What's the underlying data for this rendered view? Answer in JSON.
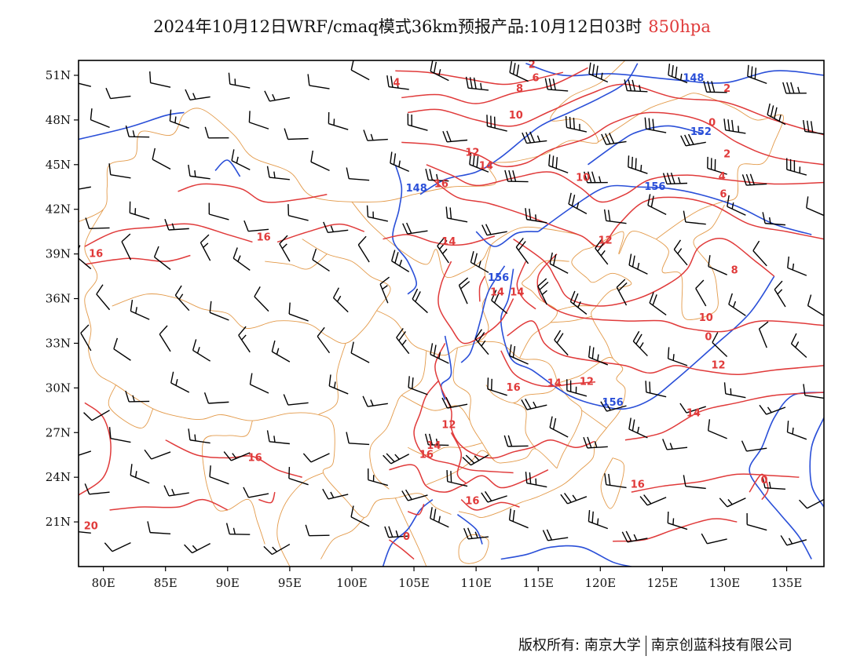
{
  "title": {
    "main": "2024年10月12日WRF/cmaq模式36km预报产品:10月12日03时",
    "level": "850hpa"
  },
  "axes": {
    "x_ticks": [
      "80E",
      "85E",
      "90E",
      "95E",
      "100E",
      "105E",
      "110E",
      "115E",
      "120E",
      "125E",
      "130E",
      "135E"
    ],
    "y_ticks": [
      "51N",
      "48N",
      "45N",
      "42N",
      "39N",
      "36N",
      "33N",
      "30N",
      "27N",
      "24N",
      "21N"
    ]
  },
  "map": {
    "lon_range": [
      78,
      138
    ],
    "lat_range": [
      18,
      52
    ],
    "colors": {
      "temperature_contour": "#e03a3a",
      "height_contour": "#2a4fd8",
      "boundary": "#e39a4a",
      "wind_barb": "#000000"
    },
    "contour_labels": [
      {
        "text": "2",
        "lon": 114.5,
        "lat": 51.5,
        "kind": "temp"
      },
      {
        "text": "4",
        "lon": 103.6,
        "lat": 50.3,
        "kind": "temp"
      },
      {
        "text": "6",
        "lon": 114.8,
        "lat": 50.6,
        "kind": "temp"
      },
      {
        "text": "8",
        "lon": 113.5,
        "lat": 49.9,
        "kind": "temp"
      },
      {
        "text": "148",
        "lon": 127.5,
        "lat": 50.6,
        "kind": "height"
      },
      {
        "text": "2",
        "lon": 130.2,
        "lat": 49.9,
        "kind": "temp"
      },
      {
        "text": "10",
        "lon": 113.2,
        "lat": 48.1,
        "kind": "temp"
      },
      {
        "text": "0",
        "lon": 129,
        "lat": 47.6,
        "kind": "temp"
      },
      {
        "text": "152",
        "lon": 128.1,
        "lat": 47.0,
        "kind": "height"
      },
      {
        "text": "12",
        "lon": 109.7,
        "lat": 45.6,
        "kind": "temp"
      },
      {
        "text": "2",
        "lon": 130.2,
        "lat": 45.5,
        "kind": "temp"
      },
      {
        "text": "14",
        "lon": 110.8,
        "lat": 44.7,
        "kind": "temp"
      },
      {
        "text": "10",
        "lon": 118.6,
        "lat": 43.9,
        "kind": "temp"
      },
      {
        "text": "156",
        "lon": 124.4,
        "lat": 43.3,
        "kind": "height"
      },
      {
        "text": "16",
        "lon": 107.2,
        "lat": 43.5,
        "kind": "temp"
      },
      {
        "text": "148",
        "lon": 105.2,
        "lat": 43.2,
        "kind": "height"
      },
      {
        "text": "4",
        "lon": 129.8,
        "lat": 44.0,
        "kind": "temp"
      },
      {
        "text": "6",
        "lon": 129.9,
        "lat": 42.8,
        "kind": "temp"
      },
      {
        "text": "16",
        "lon": 92.9,
        "lat": 39.9,
        "kind": "temp"
      },
      {
        "text": "14",
        "lon": 107.8,
        "lat": 39.6,
        "kind": "temp"
      },
      {
        "text": "12",
        "lon": 120.4,
        "lat": 39.7,
        "kind": "temp"
      },
      {
        "text": "16",
        "lon": 79.4,
        "lat": 38.8,
        "kind": "temp"
      },
      {
        "text": "156",
        "lon": 111.8,
        "lat": 37.2,
        "kind": "height"
      },
      {
        "text": "8",
        "lon": 130.8,
        "lat": 37.7,
        "kind": "temp"
      },
      {
        "text": "14",
        "lon": 111.7,
        "lat": 36.2,
        "kind": "temp"
      },
      {
        "text": "14",
        "lon": 113.3,
        "lat": 36.2,
        "kind": "temp"
      },
      {
        "text": "10",
        "lon": 128.5,
        "lat": 34.5,
        "kind": "temp"
      },
      {
        "text": "0",
        "lon": 128.7,
        "lat": 33.2,
        "kind": "temp"
      },
      {
        "text": "12",
        "lon": 129.5,
        "lat": 31.3,
        "kind": "temp"
      },
      {
        "text": "16",
        "lon": 113.0,
        "lat": 29.8,
        "kind": "temp"
      },
      {
        "text": "14",
        "lon": 116.3,
        "lat": 30.1,
        "kind": "temp"
      },
      {
        "text": "12",
        "lon": 118.9,
        "lat": 30.2,
        "kind": "temp"
      },
      {
        "text": "156",
        "lon": 121.0,
        "lat": 28.8,
        "kind": "height"
      },
      {
        "text": "14",
        "lon": 127.5,
        "lat": 28.1,
        "kind": "temp"
      },
      {
        "text": "12",
        "lon": 107.8,
        "lat": 27.3,
        "kind": "temp"
      },
      {
        "text": "14",
        "lon": 106.6,
        "lat": 25.9,
        "kind": "temp"
      },
      {
        "text": "16",
        "lon": 106.0,
        "lat": 25.3,
        "kind": "temp"
      },
      {
        "text": "16",
        "lon": 92.2,
        "lat": 25.1,
        "kind": "temp"
      },
      {
        "text": "16",
        "lon": 123.0,
        "lat": 23.3,
        "kind": "temp"
      },
      {
        "text": "0",
        "lon": 133.2,
        "lat": 23.6,
        "kind": "temp"
      },
      {
        "text": "16",
        "lon": 109.7,
        "lat": 22.2,
        "kind": "temp"
      },
      {
        "text": "20",
        "lon": 79.0,
        "lat": 20.5,
        "kind": "temp"
      },
      {
        "text": "0",
        "lon": 104.4,
        "lat": 19.8,
        "kind": "temp"
      }
    ]
  },
  "copyright": {
    "left": "版权所有: 南京大学",
    "right": "南京创蓝科技有限公司"
  }
}
